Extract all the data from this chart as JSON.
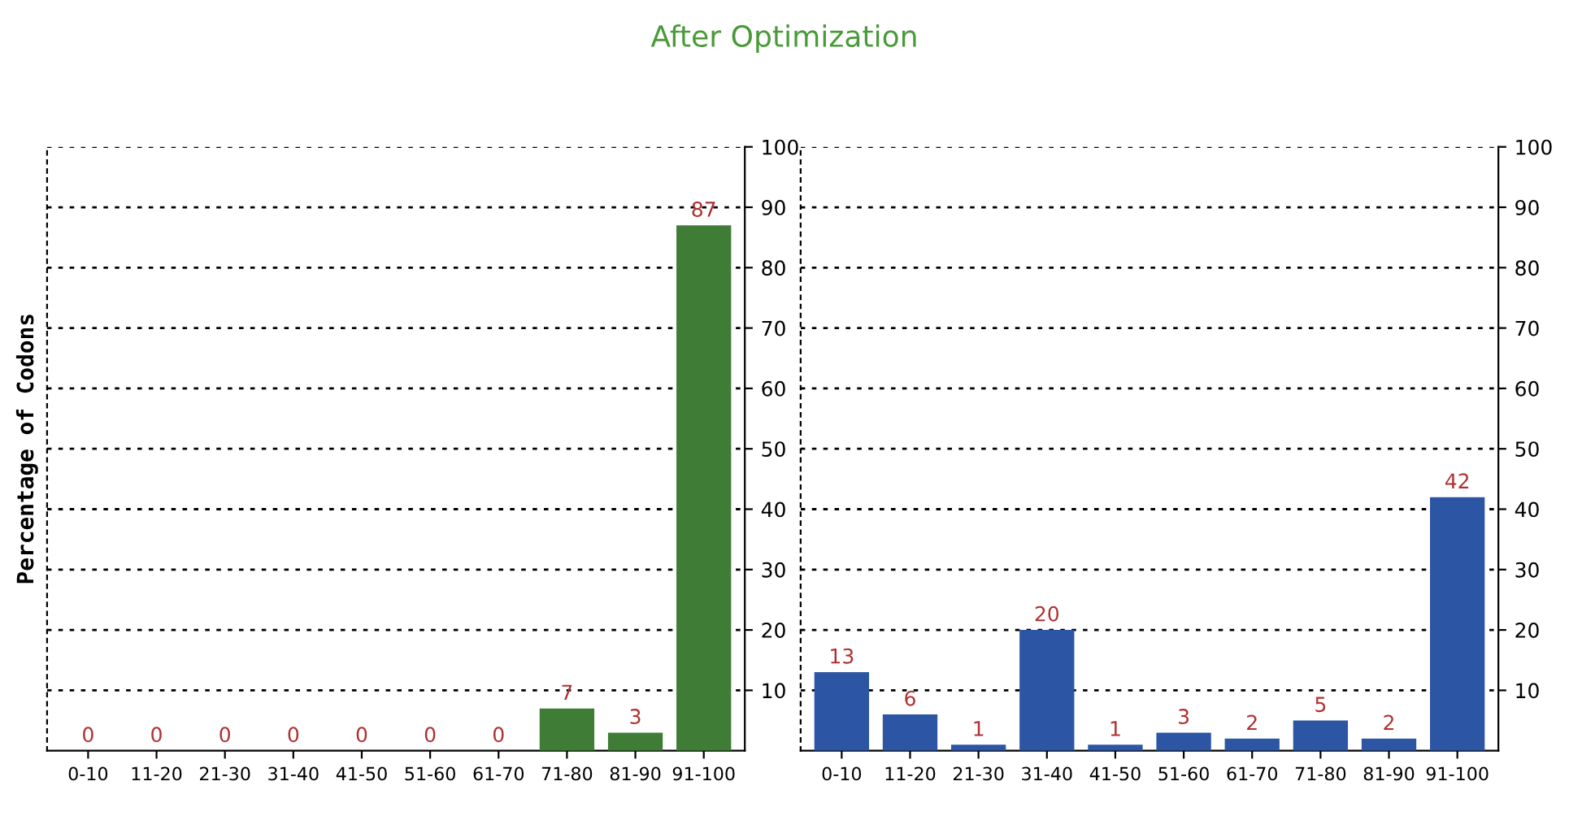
{
  "chart_data": [
    {
      "type": "bar",
      "title": "After Optimization",
      "ylabel": "Percentage of Codons",
      "categories": [
        "0-10",
        "11-20",
        "21-30",
        "31-40",
        "41-50",
        "51-60",
        "61-70",
        "71-80",
        "81-90",
        "91-100"
      ],
      "values": [
        0,
        0,
        0,
        0,
        0,
        0,
        0,
        7,
        3,
        87
      ],
      "color": "#3f7d37",
      "ylim": [
        0,
        100
      ],
      "yticks": [
        10,
        20,
        30,
        40,
        50,
        60,
        70,
        80,
        90,
        100
      ],
      "grid": "y",
      "data_labels": true
    },
    {
      "type": "bar",
      "categories": [
        "0-10",
        "11-20",
        "21-30",
        "31-40",
        "41-50",
        "51-60",
        "61-70",
        "71-80",
        "81-90",
        "91-100"
      ],
      "values": [
        13,
        6,
        1,
        20,
        1,
        3,
        2,
        5,
        2,
        42
      ],
      "color": "#2c56a3",
      "ylim": [
        0,
        100
      ],
      "yticks": [
        10,
        20,
        30,
        40,
        50,
        60,
        70,
        80,
        90,
        100
      ],
      "grid": "y",
      "data_labels": true
    }
  ]
}
